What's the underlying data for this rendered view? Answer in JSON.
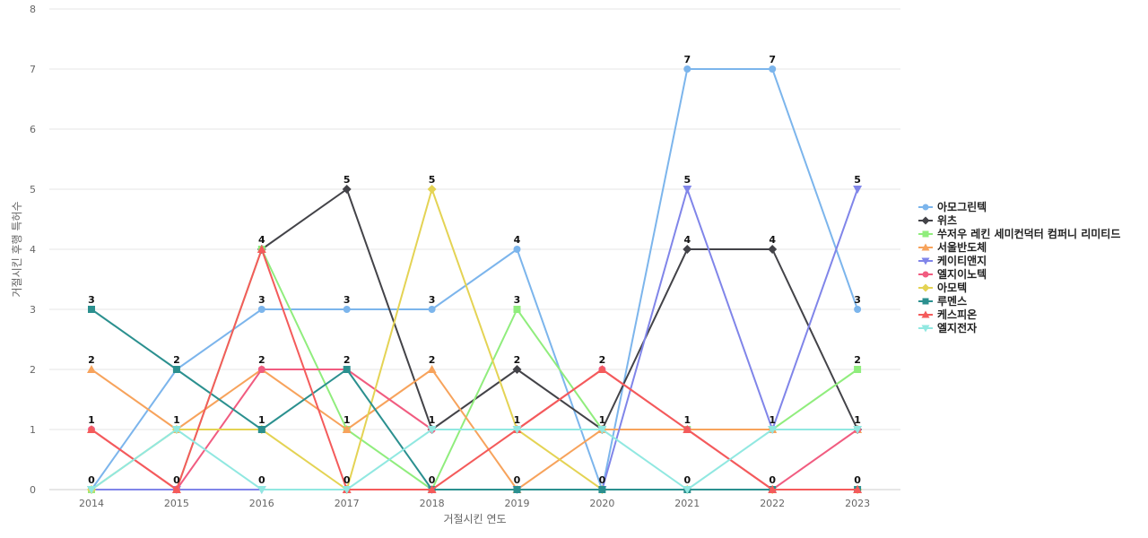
{
  "chart_data": {
    "type": "line",
    "title": "",
    "xlabel": "거절시킨 연도",
    "ylabel": "거절시킨 후행 특허수",
    "ylim": [
      0,
      8
    ],
    "yticks": [
      "0",
      "1",
      "2",
      "3",
      "4",
      "5",
      "6",
      "7",
      "8"
    ],
    "categories": [
      "2014",
      "2015",
      "2016",
      "2017",
      "2018",
      "2019",
      "2020",
      "2021",
      "2022",
      "2023"
    ],
    "grid": true,
    "legend_position": "right",
    "series": [
      {
        "name": "아모그린텍",
        "color": "#7cb5ec",
        "marker": "circle",
        "values": [
          0,
          2,
          3,
          3,
          3,
          4,
          0,
          7,
          7,
          3
        ],
        "labels": true
      },
      {
        "name": "위츠",
        "color": "#434348",
        "marker": "diamond",
        "values": [
          null,
          null,
          4,
          5,
          1,
          2,
          1,
          4,
          4,
          1
        ],
        "labels": true
      },
      {
        "name": "쑤저우 레킨 세미컨덕터 컴퍼니 리미티드",
        "color": "#90ed7d",
        "marker": "square",
        "values": [
          0,
          0,
          4,
          1,
          0,
          3,
          1,
          1,
          1,
          2
        ],
        "labels": true
      },
      {
        "name": "서울반도체",
        "color": "#f7a35c",
        "marker": "triangle",
        "values": [
          2,
          1,
          2,
          1,
          2,
          0,
          1,
          1,
          1,
          1
        ],
        "labels": true
      },
      {
        "name": "케이티앤지",
        "color": "#8085e9",
        "marker": "triangle-down",
        "values": [
          0,
          0,
          0,
          0,
          0,
          0,
          0,
          5,
          1,
          5
        ],
        "labels": true
      },
      {
        "name": "엘지이노텍",
        "color": "#f15c80",
        "marker": "circle",
        "values": [
          1,
          0,
          2,
          2,
          1,
          1,
          2,
          1,
          0,
          1
        ],
        "labels": true
      },
      {
        "name": "아모텍",
        "color": "#e4d354",
        "marker": "diamond",
        "values": [
          0,
          1,
          1,
          0,
          5,
          1,
          0,
          0,
          0,
          0
        ],
        "labels": true
      },
      {
        "name": "루멘스",
        "color": "#2b908f",
        "marker": "square",
        "values": [
          3,
          2,
          1,
          2,
          0,
          0,
          0,
          0,
          0,
          0
        ],
        "labels": true
      },
      {
        "name": "케스피온",
        "color": "#f45b5b",
        "marker": "triangle",
        "values": [
          1,
          0,
          4,
          0,
          0,
          1,
          2,
          1,
          0,
          0
        ],
        "labels": true
      },
      {
        "name": "엘지전자",
        "color": "#91e8e1",
        "marker": "triangle-down",
        "values": [
          0,
          1,
          0,
          0,
          1,
          1,
          1,
          0,
          1,
          1
        ],
        "labels": true
      }
    ],
    "data_labels": [
      {
        "x": "2014",
        "value": "3",
        "series": "루멘스"
      },
      {
        "x": "2014",
        "value": "2",
        "series": "서울반도체"
      },
      {
        "x": "2014",
        "value": "1",
        "series": "엘지이노텍"
      },
      {
        "x": "2014",
        "value": "0",
        "series": "아모그린텍"
      },
      {
        "x": "2015",
        "value": "2",
        "series": "아모그린텍"
      },
      {
        "x": "2015",
        "value": "1",
        "series": "서울반도체"
      },
      {
        "x": "2015",
        "value": "0",
        "series": "엘지이노텍"
      },
      {
        "x": "2016",
        "value": "4",
        "series": "위츠"
      },
      {
        "x": "2016",
        "value": "3",
        "series": "아모그린텍"
      },
      {
        "x": "2016",
        "value": "2",
        "series": "엘지이노텍"
      },
      {
        "x": "2016",
        "value": "1",
        "series": "루멘스"
      },
      {
        "x": "2016",
        "value": "0",
        "series": "엘지전자"
      },
      {
        "x": "2017",
        "value": "5",
        "series": "위츠"
      },
      {
        "x": "2017",
        "value": "3",
        "series": "아모그린텍"
      },
      {
        "x": "2017",
        "value": "2",
        "series": "루멘스"
      },
      {
        "x": "2017",
        "value": "1",
        "series": "서울반도체"
      },
      {
        "x": "2017",
        "value": "0",
        "series": "케스피온"
      },
      {
        "x": "2018",
        "value": "5",
        "series": "아모텍"
      },
      {
        "x": "2018",
        "value": "3",
        "series": "아모그린텍"
      },
      {
        "x": "2018",
        "value": "2",
        "series": "서울반도체"
      },
      {
        "x": "2018",
        "value": "1",
        "series": "위츠"
      },
      {
        "x": "2018",
        "value": "0",
        "series": "케스피온"
      },
      {
        "x": "2019",
        "value": "4",
        "series": "아모그린텍"
      },
      {
        "x": "2019",
        "value": "3",
        "series": "쑤저우 레킨 세미컨덕터 컴퍼니 리미티드"
      },
      {
        "x": "2019",
        "value": "2",
        "series": "위츠"
      },
      {
        "x": "2019",
        "value": "1",
        "series": "엘지이노텍"
      },
      {
        "x": "2019",
        "value": "0",
        "series": "루멘스"
      },
      {
        "x": "2020",
        "value": "2",
        "series": "케스피온"
      },
      {
        "x": "2020",
        "value": "1",
        "series": "위츠"
      },
      {
        "x": "2020",
        "value": "0",
        "series": "루멘스"
      },
      {
        "x": "2021",
        "value": "7",
        "series": "아모그린텍"
      },
      {
        "x": "2021",
        "value": "5",
        "series": "케이티앤지"
      },
      {
        "x": "2021",
        "value": "4",
        "series": "위츠"
      },
      {
        "x": "2021",
        "value": "1",
        "series": "케스피온"
      },
      {
        "x": "2021",
        "value": "0",
        "series": "루멘스"
      },
      {
        "x": "2022",
        "value": "7",
        "series": "아모그린텍"
      },
      {
        "x": "2022",
        "value": "4",
        "series": "위츠"
      },
      {
        "x": "2022",
        "value": "1",
        "series": "엘지전자"
      },
      {
        "x": "2022",
        "value": "0",
        "series": "케스피온"
      },
      {
        "x": "2023",
        "value": "5",
        "series": "케이티앤지"
      },
      {
        "x": "2023",
        "value": "3",
        "series": "아모그린텍"
      },
      {
        "x": "2023",
        "value": "2",
        "series": "쑤저우 레킨 세미컨덕터 컴퍼니 리미티드"
      },
      {
        "x": "2023",
        "value": "1",
        "series": "엘지이노텍"
      },
      {
        "x": "2023",
        "value": "0",
        "series": "루멘스"
      }
    ]
  }
}
